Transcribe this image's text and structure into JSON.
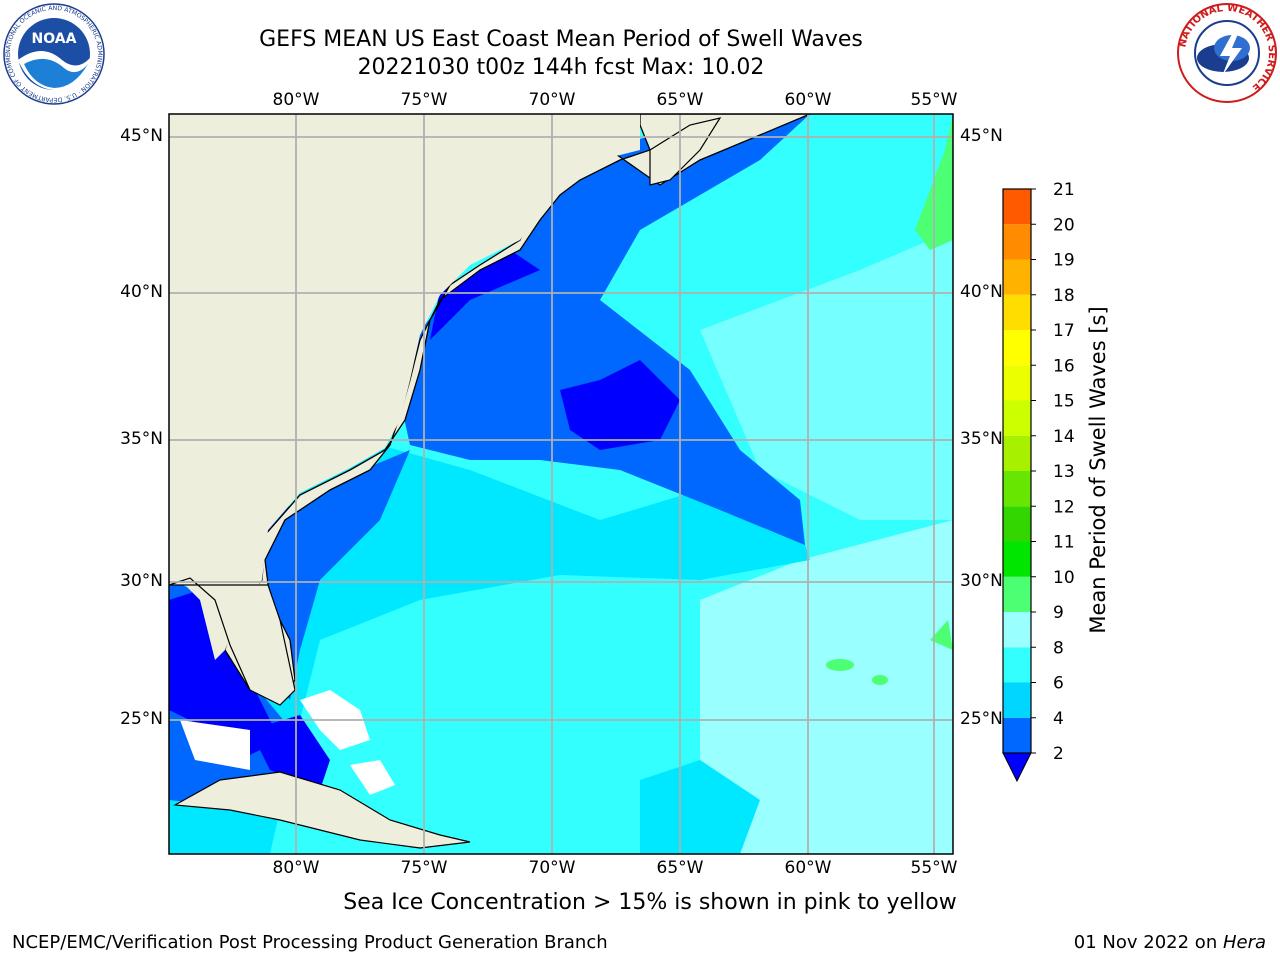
{
  "title": {
    "line1": "GEFS MEAN US East Coast Mean Period of Swell Waves",
    "line2": "20221030 t00z 144h fcst   Max: 10.02"
  },
  "axes": {
    "top_ticks": [
      "80°W",
      "75°W",
      "70°W",
      "65°W",
      "60°W",
      "55°W"
    ],
    "bottom_ticks": [
      "80°W",
      "75°W",
      "70°W",
      "65°W",
      "60°W",
      "55°W"
    ],
    "left_ticks": [
      "45°N",
      "40°N",
      "35°N",
      "30°N",
      "25°N"
    ],
    "right_ticks": [
      "45°N",
      "40°N",
      "35°N",
      "30°N",
      "25°N"
    ]
  },
  "colorbar": {
    "label": "Mean Period of Swell Waves [s]",
    "ticks": [
      "2",
      "4",
      "6",
      "8",
      "9",
      "10",
      "11",
      "12",
      "13",
      "14",
      "15",
      "16",
      "17",
      "18",
      "19",
      "20",
      "21"
    ],
    "colors": [
      "#0068ff",
      "#00d6ff",
      "#33ffff",
      "#99ffff",
      "#4cff73",
      "#00e600",
      "#33d600",
      "#66e600",
      "#a6f000",
      "#ccff00",
      "#ebff00",
      "#ffff00",
      "#ffdd00",
      "#ffb300",
      "#ff8c00",
      "#ff5a00",
      "#ff2a00",
      "#ff0000"
    ],
    "under_color": "#0000ff"
  },
  "map_colors": {
    "land": "#eeeedd",
    "ocean_base": "#33ffff",
    "level_2_4": "#0068ff",
    "level_under": "#0000ff",
    "level_4_6": "#00e8ff",
    "level_8_9": "#99ffff",
    "level_9_10": "#4cff73",
    "gridline": "#b0b0b0"
  },
  "note": "Sea Ice Concentration > 15% is shown in pink to yellow",
  "footer": {
    "left": "NCEP/EMC/Verification Post Processing Product Generation Branch",
    "right_date": "01 Nov 2022 on ",
    "right_host": "Hera"
  },
  "logos": {
    "noaa_text": "NOAA",
    "noaa_ring": "NATIONAL OCEANIC AND ATMOSPHERIC ADMINISTRATION · U.S. DEPARTMENT OF COMMERCE",
    "nws_ring": "NATIONAL WEATHER SERVICE"
  }
}
